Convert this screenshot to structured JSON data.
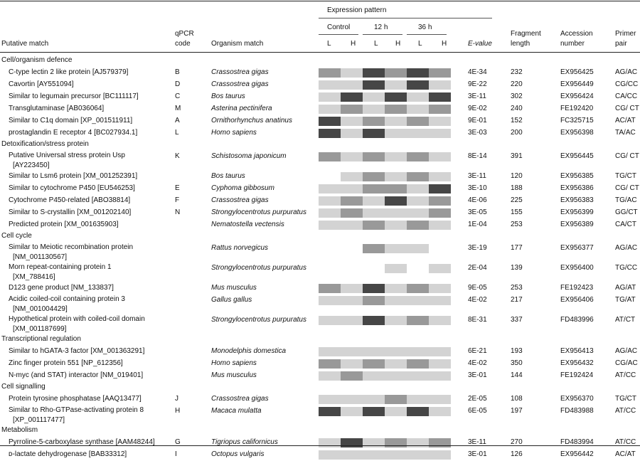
{
  "colors": {
    "h1": "#ffffff",
    "h2": "#d3d3d3",
    "h3": "#999999",
    "h4": "#464646"
  },
  "header": {
    "putative_match": "Putative match",
    "qpcr_code_l1": "qPCR",
    "qpcr_code_l2": "code",
    "organism_match": "Organism match",
    "expression_pattern": "Expression pattern",
    "control": "Control",
    "t12": "12 h",
    "t36": "36 h",
    "sub_labels": [
      "L",
      "H",
      "L",
      "H",
      "L",
      "H"
    ],
    "evalue": "E-value",
    "frag_l1": "Fragment",
    "frag_l2": "length",
    "acc_l1": "Accession",
    "acc_l2": "number",
    "primer_l1": "Primer",
    "primer_l2": "pair"
  },
  "sections": [
    {
      "title": "Cell/organism defence",
      "rows": [
        {
          "match": "C-type lectin 2 like protein [AJ579379]",
          "code": "B",
          "organism": "Crassostrea gigas",
          "hm": [
            3,
            2,
            4,
            3,
            4,
            3
          ],
          "evalue": "4E-34",
          "length": "232",
          "accession": "EX956425",
          "primer": "AG/AC"
        },
        {
          "match": "Cavortin [AY551094]",
          "code": "D",
          "organism": "Crassostrea gigas",
          "hm": [
            2,
            2,
            4,
            2,
            4,
            2
          ],
          "evalue": "9E-22",
          "length": "220",
          "accession": "EX956449",
          "primer": "CG/CC"
        },
        {
          "match": "Similar to legumain precursor [BC111117]",
          "code": "C",
          "organism": "Bos taurus",
          "hm": [
            2,
            4,
            2,
            4,
            2,
            4
          ],
          "evalue": "3E-11",
          "length": "302",
          "accession": "EX956424",
          "primer": "CA/CC"
        },
        {
          "match": "Transglutaminase [AB036064]",
          "code": "M",
          "organism": "Asterina pectinifera",
          "hm": [
            2,
            3,
            2,
            3,
            2,
            3
          ],
          "evalue": "9E-02",
          "length": "240",
          "accession": "FE192420",
          "primer": "CG/ CT"
        },
        {
          "match": "Similar to C1q domain [XP_001511911]",
          "code": "A",
          "organism": "Ornithorhynchus anatinus",
          "hm": [
            4,
            2,
            3,
            2,
            3,
            2
          ],
          "evalue": "9E-01",
          "length": "152",
          "accession": "FC325715",
          "primer": "AC/AT"
        },
        {
          "match": "prostaglandin E receptor 4 [BC027934.1]",
          "code": "L",
          "organism": "Homo sapiens",
          "hm": [
            4,
            2,
            4,
            2,
            2,
            2
          ],
          "evalue": "3E-03",
          "length": "200",
          "accession": "EX956398",
          "primer": "TA/AC"
        }
      ]
    },
    {
      "title": "Detoxification/stress protein",
      "rows": [
        {
          "match": "Putative Universal stress protein Usp",
          "match2": "[AY223450]",
          "code": "K",
          "organism": "Schistosoma japonicum",
          "hm": [
            3,
            2,
            3,
            2,
            3,
            2
          ],
          "evalue": "8E-14",
          "length": "391",
          "accession": "EX956445",
          "primer": "CG/ CT"
        },
        {
          "match": "Similar to Lsm6 protein [XM_001252391]",
          "code": "",
          "organism": "Bos taurus",
          "hm": [
            1,
            2,
            3,
            2,
            3,
            2
          ],
          "evalue": "3E-11",
          "length": "120",
          "accession": "EX956385",
          "primer": "TG/CT"
        },
        {
          "match": "Similar to cytochrome P450 [EU546253]",
          "code": "E",
          "organism": "Cyphoma gibbosum",
          "hm": [
            2,
            2,
            3,
            3,
            2,
            4
          ],
          "evalue": "3E-10",
          "length": "188",
          "accession": "EX956386",
          "primer": "CG/ CT"
        },
        {
          "match": "Cytochrome P450-related [ABO38814]",
          "code": "F",
          "organism": "Crassostrea gigas",
          "hm": [
            2,
            3,
            2,
            4,
            2,
            3
          ],
          "evalue": "4E-06",
          "length": "225",
          "accession": "EX956383",
          "primer": "TG/AC"
        },
        {
          "match": "Similar to S-crystallin [XM_001202140]",
          "code": "N",
          "organism": "Strongylocentrotus purpuratus",
          "hm": [
            2,
            3,
            2,
            2,
            2,
            3
          ],
          "evalue": "3E-05",
          "length": "155",
          "accession": "EX956399",
          "primer": "GG/CT"
        },
        {
          "match": "Predicted protein [XM_001635903]",
          "code": "",
          "organism": "Nematostella vectensis",
          "hm": [
            2,
            2,
            3,
            2,
            3,
            2
          ],
          "evalue": "1E-04",
          "length": "253",
          "accession": "EX956389",
          "primer": "CA/CT"
        }
      ]
    },
    {
      "title": "Cell cycle",
      "rows": [
        {
          "match": "Similar to Meiotic recombination protein",
          "match2": "[NM_001130567]",
          "code": "",
          "organism": "Rattus norvegicus",
          "hm": [
            1,
            1,
            3,
            2,
            2,
            1
          ],
          "evalue": "3E-19",
          "length": "177",
          "accession": "EX956377",
          "primer": "AG/AC"
        },
        {
          "match": "Morn repeat-containing protein 1",
          "match2": "[XM_788416]",
          "code": "",
          "organism": "Strongylocentrotus purpuratus",
          "hm": [
            1,
            1,
            1,
            2,
            1,
            2
          ],
          "evalue": "2E-04",
          "length": "139",
          "accession": "EX956400",
          "primer": "TG/CC"
        },
        {
          "match": "D123 gene product [NM_133837]",
          "code": "",
          "organism": "Mus musculus",
          "hm": [
            3,
            2,
            4,
            2,
            3,
            2
          ],
          "evalue": "9E-05",
          "length": "253",
          "accession": "FE192423",
          "primer": "AG/AT"
        },
        {
          "match": "Acidic coiled-coil containing protein 3",
          "match2": "[NM_001004429]",
          "code": "",
          "organism": "Gallus gallus",
          "hm": [
            2,
            2,
            3,
            2,
            2,
            2
          ],
          "evalue": "4E-02",
          "length": "217",
          "accession": "EX956406",
          "primer": "TG/AT"
        },
        {
          "match": "Hypothetical protein with coiled-coil domain",
          "match2": "[XM_001187699]",
          "code": "",
          "organism": "Strongylocentrotus purpuratus",
          "hm": [
            2,
            2,
            4,
            2,
            3,
            2
          ],
          "evalue": "8E-31",
          "length": "337",
          "accession": "FD483996",
          "primer": "AT/CT"
        }
      ]
    },
    {
      "title": "Transcriptional regulation",
      "rows": [
        {
          "match": "Similar to hGATA-3 factor [XM_001363291]",
          "code": "",
          "organism": "Monodelphis domestica",
          "hm": [
            2,
            2,
            2,
            2,
            2,
            2
          ],
          "evalue": "6E-21",
          "length": "193",
          "accession": "EX956413",
          "primer": "AG/AC"
        },
        {
          "match": "Zinc finger protein 551 [NP_612356]",
          "code": "",
          "organism": "Homo sapiens",
          "hm": [
            3,
            2,
            3,
            2,
            3,
            2
          ],
          "evalue": "4E-02",
          "length": "350",
          "accession": "EX956432",
          "primer": "CG/AC"
        },
        {
          "match": "N-myc (and STAT) interactor [NM_019401]",
          "code": "",
          "organism": "Mus musculus",
          "hm": [
            2,
            3,
            2,
            2,
            2,
            2
          ],
          "evalue": "3E-01",
          "length": "144",
          "accession": "FE192424",
          "primer": "AT/CC"
        }
      ]
    },
    {
      "title": "Cell signalling",
      "rows": [
        {
          "match": "Protein tyrosine phosphatase [AAQ13477]",
          "code": "J",
          "organism": "Crassostrea gigas",
          "hm": [
            2,
            2,
            2,
            3,
            2,
            2
          ],
          "evalue": "2E-05",
          "length": "108",
          "accession": "EX956370",
          "primer": "TG/CT"
        },
        {
          "match": "Similar to Rho-GTPase-activating protein 8",
          "match2": "[XP_001117477]",
          "code": "H",
          "organism": "Macaca mulatta",
          "hm": [
            4,
            2,
            4,
            2,
            4,
            2
          ],
          "evalue": "6E-05",
          "length": "197",
          "accession": "FD483988",
          "primer": "AT/CC"
        }
      ]
    },
    {
      "title": "Metabolism",
      "rows": [
        {
          "match": "Pyrroline-5-carboxylase synthase [AAM48244]",
          "code": "G",
          "organism": "Tigriopus californicus",
          "hm": [
            2,
            4,
            2,
            3,
            2,
            3
          ],
          "evalue": "3E-11",
          "length": "270",
          "accession": "FD483994",
          "primer": "AT/CC"
        },
        {
          "match": "ᴅ-lactate dehydrogenase [BAB33312]",
          "code": "I",
          "organism": "Octopus vulgaris",
          "hm": [
            2,
            2,
            2,
            2,
            2,
            2
          ],
          "evalue": "3E-01",
          "length": "126",
          "accession": "EX956442",
          "primer": "AC/AT"
        }
      ]
    }
  ]
}
